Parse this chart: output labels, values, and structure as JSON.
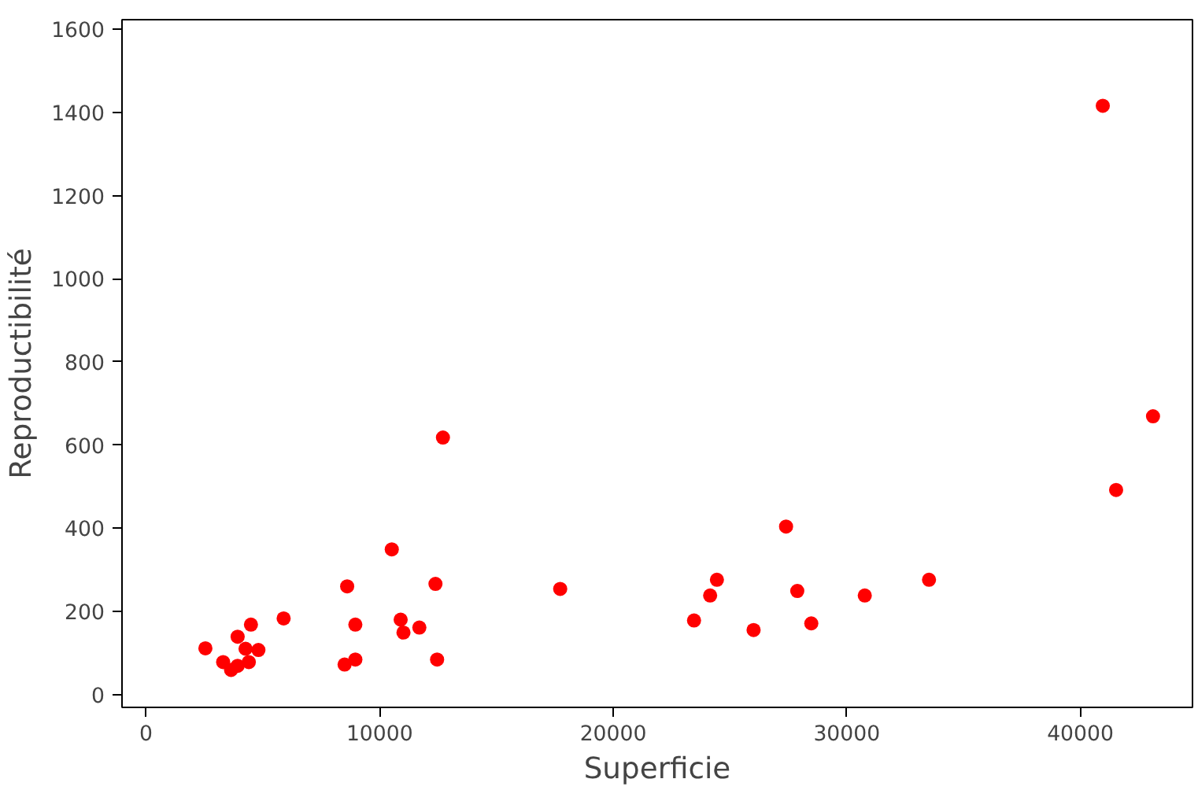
{
  "chart_data": {
    "type": "scatter",
    "xlabel": "Superficie",
    "ylabel": "Reproductibilité",
    "marker": "circle",
    "grid": false,
    "xlim": [
      -1030,
      44800
    ],
    "ylim": [
      -31,
      1623
    ],
    "xticks": [
      0,
      10000,
      20000,
      30000,
      40000
    ],
    "yticks": [
      0,
      200,
      400,
      600,
      800,
      1000,
      1200,
      1400,
      1600
    ],
    "series": [
      {
        "color": "#ff0000",
        "x": [
          2540,
          3300,
          3640,
          3920,
          3920,
          4260,
          4400,
          4490,
          4810,
          5890,
          8610,
          8960,
          8500,
          8960,
          10520,
          10900,
          11020,
          11700,
          12390,
          12460,
          12710,
          17730,
          23460,
          24150,
          24440,
          26010,
          27400,
          27880,
          28480,
          30770,
          33520,
          41530,
          43110,
          40960
        ],
        "values": [
          111,
          78,
          59,
          69,
          139,
          110,
          78,
          168,
          107,
          183,
          260,
          168,
          72,
          84,
          349,
          180,
          149,
          161,
          266,
          84,
          618,
          254,
          178,
          238,
          276,
          155,
          404,
          249,
          171,
          238,
          276,
          492,
          669,
          1416
        ]
      }
    ]
  }
}
